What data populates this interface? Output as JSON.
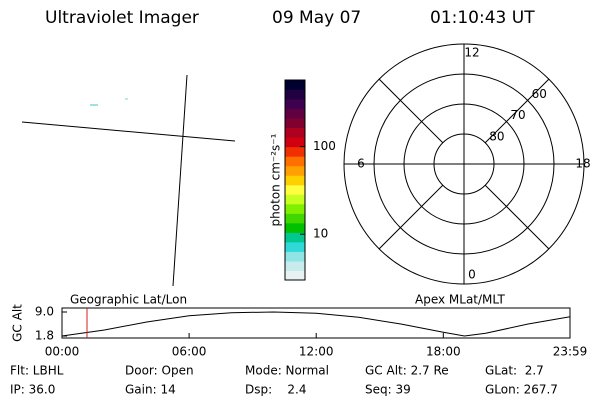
{
  "header": {
    "title": "Ultraviolet Imager",
    "date": "09 May 07",
    "time": "01:10:43 UT"
  },
  "colorbar": {
    "label": "photon cm⁻²s⁻¹",
    "log": true,
    "clim": [
      3,
      575
    ],
    "ticks": [
      10,
      100
    ],
    "colors": [
      "#e8f2f2",
      "#c8ecec",
      "#90e4e4",
      "#30d8d8",
      "#00c890",
      "#00c000",
      "#40d800",
      "#80f000",
      "#c8ff20",
      "#ffff40",
      "#ffd000",
      "#ffa000",
      "#ff7000",
      "#f03000",
      "#d00010",
      "#b00020",
      "#800030",
      "#600040",
      "#400050",
      "#200040",
      "#000030"
    ]
  },
  "polar": {
    "rlim": [
      90,
      50
    ],
    "rings": [
      80,
      70,
      60,
      50
    ],
    "ring_labels": [
      80,
      70,
      60
    ],
    "mlt": [
      12,
      6,
      0,
      18
    ]
  },
  "altitude": {
    "axis_label": "GC Alt",
    "left_title": "Geographic Lat/Lon",
    "right_title": "Apex MLat/MLT",
    "ylim": [
      1.8,
      9.0
    ],
    "yticks": [
      {
        "value": 9.0,
        "label": "9.0"
      },
      {
        "value": 1.8,
        "label": "1.8"
      }
    ],
    "xlim": [
      0,
      23.98
    ],
    "xticks": [
      {
        "value": 0,
        "label": "00:00"
      },
      {
        "value": 6,
        "label": "06:00"
      },
      {
        "value": 12,
        "label": "12:00"
      },
      {
        "value": 18,
        "label": "18:00"
      },
      {
        "value": 23.98,
        "label": "23:59"
      }
    ],
    "x": [
      0,
      2,
      4,
      6,
      8,
      10,
      12,
      14,
      16,
      18,
      19,
      20,
      22,
      23.98
    ],
    "values": [
      1.8,
      3.6,
      6.0,
      7.9,
      8.8,
      9.0,
      8.6,
      7.4,
      5.4,
      2.9,
      1.8,
      2.6,
      5.4,
      7.6
    ],
    "current": 1.18,
    "current_color": "#d02020"
  },
  "footer": [
    [
      "Flt: LBHL",
      "Door: Open",
      "Mode: Normal",
      "GC Alt: 2.7 Re",
      "GLat:  2.7"
    ],
    [
      "IP: 36.0",
      "Gain: 14",
      "Dsp:    2.4",
      "Seq: 39",
      "GLon: 267.7"
    ]
  ]
}
